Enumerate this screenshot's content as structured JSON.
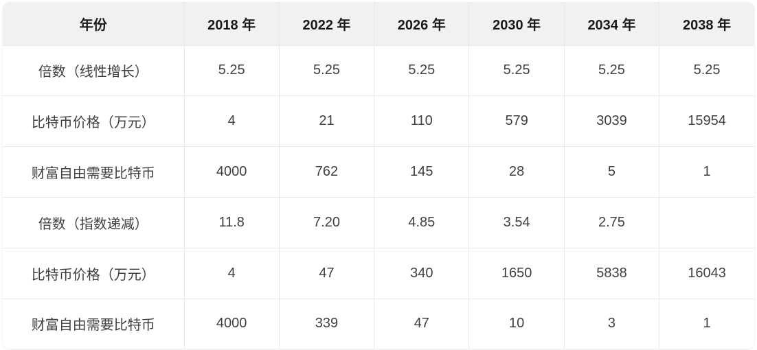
{
  "table": {
    "columns": [
      "年份",
      "2018 年",
      "2022 年",
      "2026 年",
      "2030 年",
      "2034 年",
      "2038 年"
    ],
    "rows": [
      {
        "label": "倍数（线性增长）",
        "values": [
          "5.25",
          "5.25",
          "5.25",
          "5.25",
          "5.25",
          "5.25"
        ]
      },
      {
        "label": "比特币价格（万元）",
        "values": [
          "4",
          "21",
          "110",
          "579",
          "3039",
          "15954"
        ]
      },
      {
        "label": "财富自由需要比特币",
        "values": [
          "4000",
          "762",
          "145",
          "28",
          "5",
          "1"
        ]
      },
      {
        "label": "倍数（指数递减）",
        "values": [
          "11.8",
          "7.20",
          "4.85",
          "3.54",
          "2.75",
          ""
        ]
      },
      {
        "label": "比特币价格（万元）",
        "values": [
          "4",
          "47",
          "340",
          "1650",
          "5838",
          "16043"
        ]
      },
      {
        "label": "财富自由需要比特币",
        "values": [
          "4000",
          "339",
          "47",
          "10",
          "3",
          "1"
        ]
      }
    ]
  },
  "colors": {
    "header_bg": "#f1f1f1",
    "grid_border": "#e9e9e9",
    "header_text": "#1a1a1a",
    "body_text": "#3f3f3f",
    "page_bg": "#ffffff"
  },
  "chart_data": {
    "type": "table",
    "title": "",
    "columns": [
      "年份",
      "2018 年",
      "2022 年",
      "2026 年",
      "2030 年",
      "2034 年",
      "2038 年"
    ],
    "rows": [
      [
        "倍数（线性增长）",
        5.25,
        5.25,
        5.25,
        5.25,
        5.25,
        5.25
      ],
      [
        "比特币价格（万元）",
        4,
        21,
        110,
        579,
        3039,
        15954
      ],
      [
        "财富自由需要比特币",
        4000,
        762,
        145,
        28,
        5,
        1
      ],
      [
        "倍数（指数递减）",
        11.8,
        7.2,
        4.85,
        3.54,
        2.75,
        null
      ],
      [
        "比特币价格（万元）",
        4,
        47,
        340,
        1650,
        5838,
        16043
      ],
      [
        "财富自由需要比特币",
        4000,
        339,
        47,
        10,
        3,
        1
      ]
    ],
    "layout_hints": {
      "header_row_shaded": true,
      "grid": true,
      "rounded_corners": true,
      "cell_alignment": "center"
    }
  }
}
